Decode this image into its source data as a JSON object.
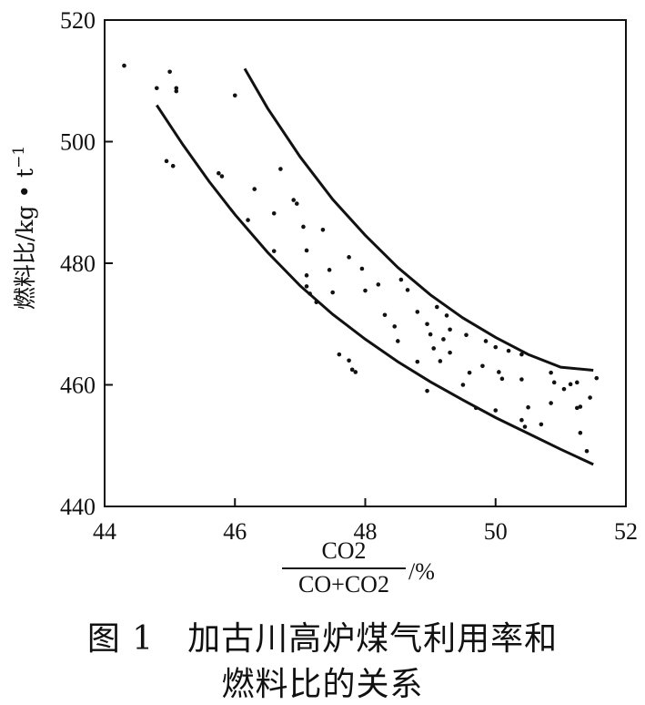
{
  "caption": {
    "line1": "图 1　加古川高炉煤气利用率和",
    "line2": "燃料比的关系"
  },
  "chart_data": {
    "type": "scatter",
    "xlabel_numerator": "CO2",
    "xlabel_denominator": "CO+CO2",
    "xlabel_unit": "/%",
    "ylabel": "燃料比/kg • t",
    "ylabel_superscript": "−1",
    "xlim": [
      44,
      52
    ],
    "ylim": [
      440,
      520
    ],
    "x_ticks": [
      44,
      46,
      48,
      50,
      52
    ],
    "y_ticks": [
      440,
      460,
      480,
      500,
      520
    ],
    "grid": false,
    "points": [
      [
        44.3,
        512.5
      ],
      [
        44.8,
        508.8
      ],
      [
        45.0,
        511.5
      ],
      [
        45.1,
        508.8
      ],
      [
        45.1,
        508.3
      ],
      [
        44.95,
        496.8
      ],
      [
        45.05,
        496.0
      ],
      [
        45.8,
        494.3
      ],
      [
        45.75,
        494.8
      ],
      [
        46.0,
        507.6
      ],
      [
        46.3,
        492.2
      ],
      [
        46.2,
        487.1
      ],
      [
        46.6,
        482.0
      ],
      [
        46.6,
        488.2
      ],
      [
        46.7,
        495.5
      ],
      [
        46.9,
        490.4
      ],
      [
        46.95,
        489.8
      ],
      [
        47.05,
        486.0
      ],
      [
        47.1,
        482.1
      ],
      [
        47.1,
        478.0
      ],
      [
        47.1,
        476.2
      ],
      [
        47.15,
        475.0
      ],
      [
        47.25,
        473.6
      ],
      [
        47.35,
        485.5
      ],
      [
        47.45,
        478.9
      ],
      [
        47.5,
        475.2
      ],
      [
        47.6,
        465.0
      ],
      [
        47.75,
        464.0
      ],
      [
        47.75,
        481.0
      ],
      [
        47.8,
        462.5
      ],
      [
        47.85,
        462.1
      ],
      [
        47.95,
        479.1
      ],
      [
        48.0,
        475.5
      ],
      [
        48.2,
        476.5
      ],
      [
        48.3,
        471.5
      ],
      [
        48.45,
        469.6
      ],
      [
        48.5,
        467.2
      ],
      [
        48.55,
        477.3
      ],
      [
        48.65,
        475.6
      ],
      [
        48.8,
        472.0
      ],
      [
        48.8,
        463.8
      ],
      [
        48.95,
        470.0
      ],
      [
        49.0,
        468.3
      ],
      [
        49.05,
        466.0
      ],
      [
        49.1,
        472.8
      ],
      [
        49.15,
        463.9
      ],
      [
        49.2,
        467.5
      ],
      [
        49.25,
        471.4
      ],
      [
        49.3,
        469.1
      ],
      [
        49.3,
        465.3
      ],
      [
        49.55,
        468.2
      ],
      [
        49.6,
        462.0
      ],
      [
        49.7,
        456.2
      ],
      [
        49.8,
        463.1
      ],
      [
        49.85,
        467.2
      ],
      [
        50.0,
        455.8
      ],
      [
        50.0,
        466.2
      ],
      [
        50.05,
        462.1
      ],
      [
        50.1,
        461.0
      ],
      [
        50.2,
        465.6
      ],
      [
        50.4,
        465.0
      ],
      [
        50.4,
        460.9
      ],
      [
        50.4,
        454.2
      ],
      [
        50.45,
        453.1
      ],
      [
        50.5,
        456.3
      ],
      [
        50.7,
        453.5
      ],
      [
        50.85,
        462.0
      ],
      [
        50.9,
        460.4
      ],
      [
        51.05,
        459.3
      ],
      [
        51.15,
        460.1
      ],
      [
        51.25,
        460.4
      ],
      [
        51.25,
        456.2
      ],
      [
        51.3,
        456.4
      ],
      [
        51.45,
        457.9
      ],
      [
        51.55,
        461.1
      ],
      [
        51.3,
        452.1
      ],
      [
        51.4,
        449.1
      ],
      [
        50.85,
        457.0
      ],
      [
        49.5,
        460.0
      ],
      [
        48.95,
        459.0
      ]
    ],
    "curves": [
      {
        "points": [
          [
            44.8,
            506
          ],
          [
            45.2,
            499.5
          ],
          [
            45.6,
            493.5
          ],
          [
            46.0,
            488.0
          ],
          [
            46.5,
            481.8
          ],
          [
            47.0,
            476.3
          ],
          [
            47.5,
            471.6
          ],
          [
            48.0,
            467.5
          ],
          [
            48.5,
            463.8
          ],
          [
            49.0,
            460.5
          ],
          [
            49.5,
            457.5
          ],
          [
            50.0,
            454.6
          ],
          [
            50.5,
            452.0
          ],
          [
            51.0,
            449.4
          ],
          [
            51.5,
            446.9
          ]
        ]
      },
      {
        "points": [
          [
            46.15,
            512
          ],
          [
            46.5,
            505.5
          ],
          [
            47.0,
            497.5
          ],
          [
            47.5,
            490.5
          ],
          [
            48.0,
            484.6
          ],
          [
            48.5,
            479.3
          ],
          [
            49.0,
            474.8
          ],
          [
            49.5,
            471.0
          ],
          [
            50.0,
            467.8
          ],
          [
            50.5,
            465.0
          ],
          [
            51.0,
            462.9
          ],
          [
            51.5,
            462.4
          ]
        ]
      }
    ]
  }
}
